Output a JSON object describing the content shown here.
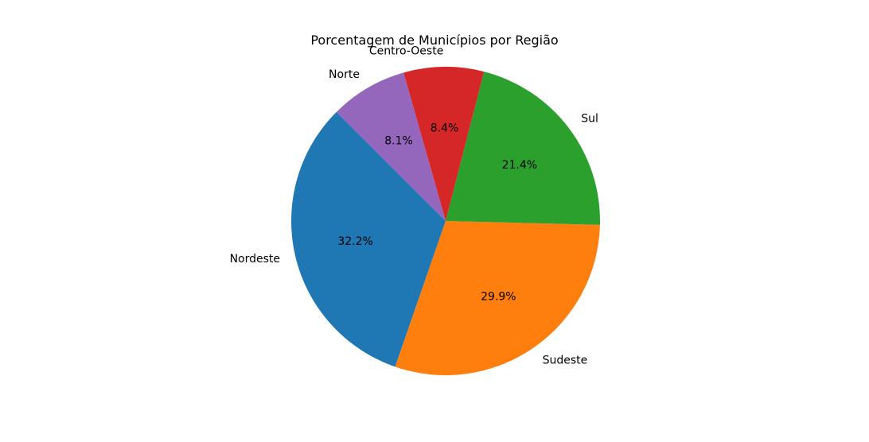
{
  "chart_data": {
    "type": "pie",
    "title": "Porcentagem de Municípios por Região",
    "start_angle_deg": 135,
    "direction": "counterclockwise",
    "slices": [
      {
        "label": "Nordeste",
        "value": 32.2,
        "pct_label": "32.2%",
        "color": "#1f77b4"
      },
      {
        "label": "Sudeste",
        "value": 29.9,
        "pct_label": "29.9%",
        "color": "#ff7f0e"
      },
      {
        "label": "Sul",
        "value": 21.4,
        "pct_label": "21.4%",
        "color": "#2ca02c"
      },
      {
        "label": "Centro-Oeste",
        "value": 8.4,
        "pct_label": "8.4%",
        "color": "#d62728"
      },
      {
        "label": "Norte",
        "value": 8.1,
        "pct_label": "8.1%",
        "color": "#9467bd"
      }
    ]
  }
}
